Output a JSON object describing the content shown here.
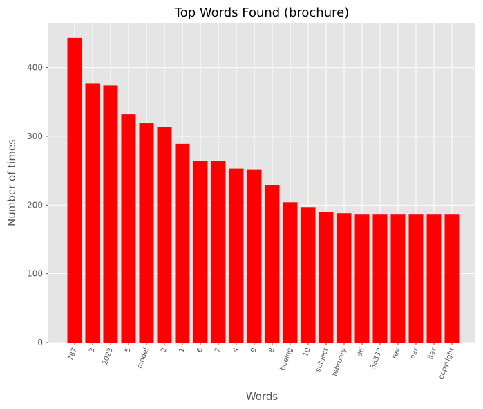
{
  "chart_data": {
    "type": "bar",
    "title": "Top Words Found (brochure)",
    "xlabel": "Words",
    "ylabel": "Number of times",
    "categories": [
      "787",
      "3",
      "2023",
      "5",
      "model",
      "2",
      "1",
      "6",
      "7",
      "4",
      "9",
      "8",
      "boeing",
      "10",
      "subject",
      "february",
      "d6",
      "58333",
      "rev",
      "ear",
      "itar",
      "copyright"
    ],
    "values": [
      443,
      377,
      374,
      332,
      319,
      313,
      289,
      264,
      264,
      253,
      252,
      229,
      204,
      197,
      190,
      188,
      187,
      187,
      187,
      187,
      187,
      187
    ],
    "ylim": [
      0,
      465
    ],
    "yticks": [
      0,
      100,
      200,
      300,
      400
    ],
    "grid": true,
    "legend": "none",
    "bar_color": "#ff0000",
    "background_color": "#e5e5e5",
    "grid_color": "#ffffff"
  }
}
